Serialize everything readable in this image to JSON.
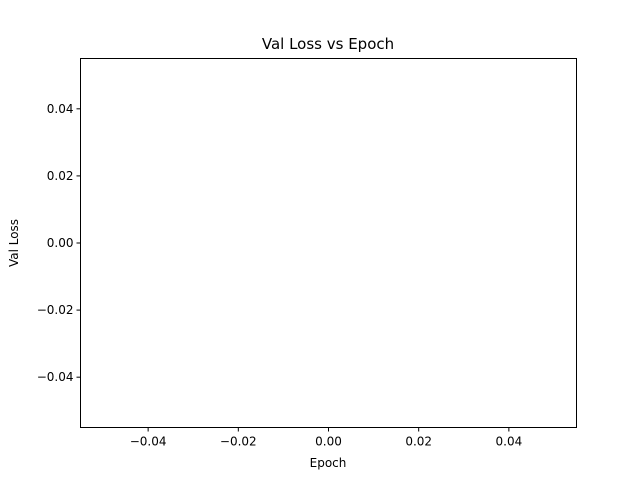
{
  "chart_data": {
    "type": "line",
    "title": "Val Loss vs Epoch",
    "xlabel": "Epoch",
    "ylabel": "Val Loss",
    "xlim": [
      -0.055,
      0.055
    ],
    "ylim": [
      -0.055,
      0.055
    ],
    "xticks": [
      -0.04,
      -0.02,
      0.0,
      0.02,
      0.04
    ],
    "xtick_labels": [
      "−0.04",
      "−0.02",
      "0.00",
      "0.02",
      "0.04"
    ],
    "yticks": [
      -0.04,
      -0.02,
      0.0,
      0.02,
      0.04
    ],
    "ytick_labels": [
      "−0.04",
      "−0.02",
      "0.00",
      "0.02",
      "0.04"
    ],
    "grid": false,
    "series": [
      {
        "x": [],
        "values": []
      }
    ]
  }
}
